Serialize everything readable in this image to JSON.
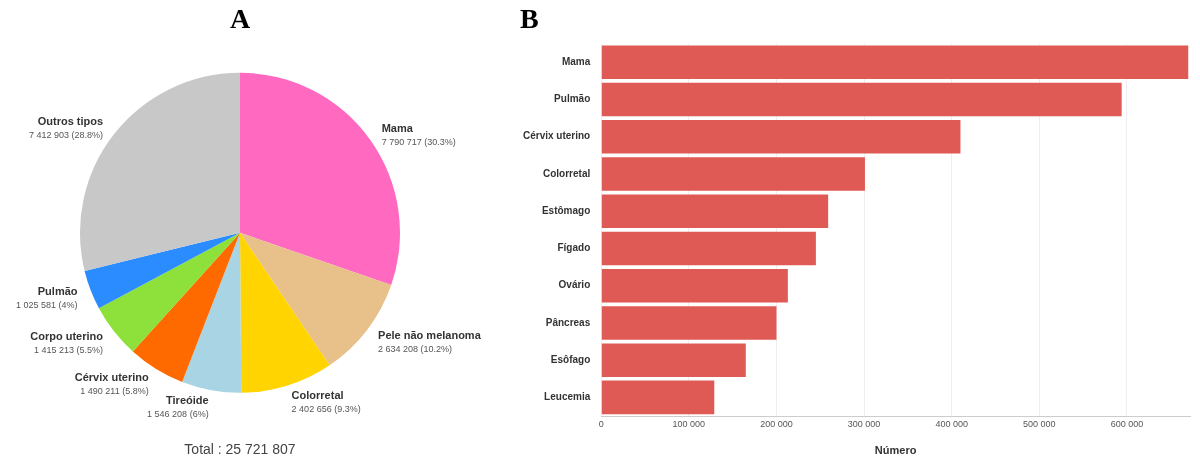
{
  "chart_data": [
    {
      "type": "pie",
      "title": "A",
      "categories": [
        "Mama",
        "Pele não melanoma",
        "Colorretal",
        "Tireóide",
        "Cérvix uterino",
        "Corpo uterino",
        "Pulmão",
        "Outros tipos"
      ],
      "values": [
        7790717,
        2634208,
        2402656,
        1546208,
        1490211,
        1415213,
        1025581,
        7412903
      ],
      "value_labels": [
        "7 790 717 (30.3%)",
        "2 634 208 (10.2%)",
        "2 402 656 (9.3%)",
        "1 546 208 (6%)",
        "1 490 211 (5.8%)",
        "1 415 213 (5.5%)",
        "1 025 581 (4%)",
        "7 412 903 (28.8%)"
      ],
      "colors": [
        "#ff69c0",
        "#e8c08a",
        "#ffd400",
        "#a8d4e4",
        "#ff6a00",
        "#8ee03a",
        "#2b8cff",
        "#c8c8c8"
      ],
      "annotations": [
        "Total : 25 721 807"
      ],
      "legend": false
    },
    {
      "type": "bar",
      "title": "B",
      "orientation": "horizontal",
      "xlabel": "Número",
      "categories": [
        "Mama",
        "Pulmão",
        "Cérvix uterino",
        "Colorretal",
        "Estômago",
        "Fígado",
        "Ovário",
        "Pâncreas",
        "Esôfago",
        "Leucemia"
      ],
      "values": [
        670000,
        594000,
        410000,
        301000,
        259000,
        245000,
        213000,
        200000,
        165000,
        129000
      ],
      "color": "#e05a55",
      "xlim": [
        0,
        672000
      ],
      "xticks": [
        0,
        {
          "value": 100000,
          "label": "100 000"
        },
        {
          "value": 200000,
          "label": "200 000"
        },
        {
          "value": 300000,
          "label": "300 000"
        },
        {
          "value": 400000,
          "label": "400 000"
        },
        {
          "value": 500000,
          "label": "500 000"
        },
        {
          "value": 600000,
          "label": "600 000"
        }
      ],
      "grid": "x",
      "legend": false
    }
  ]
}
